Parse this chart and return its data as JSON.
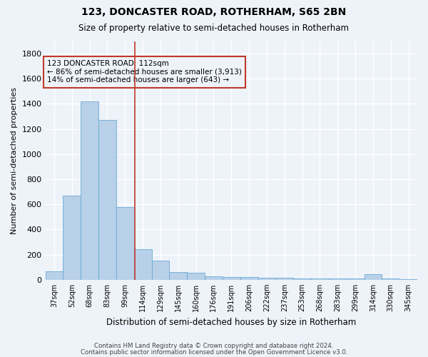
{
  "title1": "123, DONCASTER ROAD, ROTHERHAM, S65 2BN",
  "title2": "Size of property relative to semi-detached houses in Rotherham",
  "xlabel": "Distribution of semi-detached houses by size in Rotherham",
  "ylabel": "Number of semi-detached properties",
  "categories": [
    "37sqm",
    "52sqm",
    "68sqm",
    "83sqm",
    "99sqm",
    "114sqm",
    "129sqm",
    "145sqm",
    "160sqm",
    "176sqm",
    "191sqm",
    "206sqm",
    "222sqm",
    "237sqm",
    "253sqm",
    "268sqm",
    "283sqm",
    "299sqm",
    "314sqm",
    "330sqm",
    "345sqm"
  ],
  "values": [
    65,
    670,
    1420,
    1270,
    580,
    245,
    150,
    60,
    55,
    30,
    20,
    20,
    15,
    15,
    12,
    10,
    10,
    10,
    45,
    10,
    5
  ],
  "bar_color": "#b8d0e8",
  "bar_edge_color": "#6aaad4",
  "annotation_title": "123 DONCASTER ROAD: 112sqm",
  "annotation_line1": "← 86% of semi-detached houses are smaller (3,913)",
  "annotation_line2": "14% of semi-detached houses are larger (643) →",
  "vline_color": "#c0392b",
  "vline_x": 4.55,
  "annotation_box_color": "#c0392b",
  "ylim": [
    0,
    1900
  ],
  "yticks": [
    0,
    200,
    400,
    600,
    800,
    1000,
    1200,
    1400,
    1600,
    1800
  ],
  "footer1": "Contains HM Land Registry data © Crown copyright and database right 2024.",
  "footer2": "Contains public sector information licensed under the Open Government Licence v3.0.",
  "bg_color": "#eef3fa",
  "grid_color": "#ffffff"
}
